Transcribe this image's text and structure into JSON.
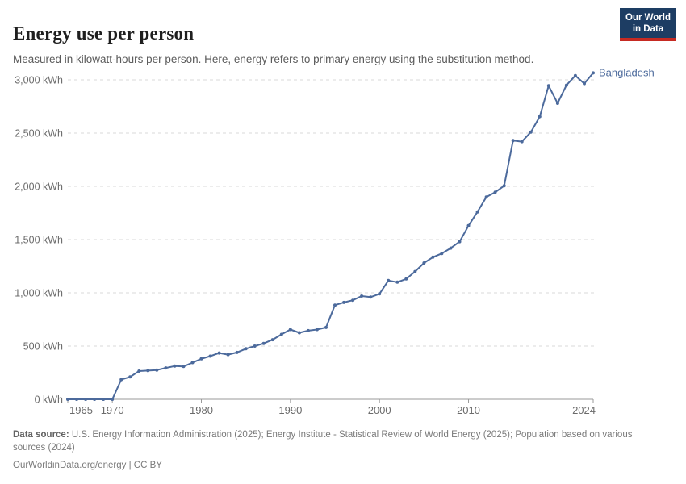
{
  "header": {
    "title": "Energy use per person",
    "subtitle": "Measured in kilowatt-hours per person. Here, energy refers to primary energy using the substitution method."
  },
  "logo": {
    "line1": "Our World",
    "line2": "in Data",
    "bg_color": "#1d3d63",
    "bar_color": "#c62a22"
  },
  "chart_data": {
    "type": "line",
    "title": "Energy use per person",
    "entity_label": "Bangladesh",
    "line_color": "#4c6a9c",
    "grid_color": "#dadada",
    "axis_color": "#9a9a9a",
    "tick_label_color": "#6b6b6b",
    "x": [
      1965,
      1966,
      1967,
      1968,
      1969,
      1970,
      1971,
      1972,
      1973,
      1974,
      1975,
      1976,
      1977,
      1978,
      1979,
      1980,
      1981,
      1982,
      1983,
      1984,
      1985,
      1986,
      1987,
      1988,
      1989,
      1990,
      1991,
      1992,
      1993,
      1994,
      1995,
      1996,
      1997,
      1998,
      1999,
      2000,
      2001,
      2002,
      2003,
      2004,
      2005,
      2006,
      2007,
      2008,
      2009,
      2010,
      2011,
      2012,
      2013,
      2014,
      2015,
      2016,
      2017,
      2018,
      2019,
      2020,
      2021,
      2022,
      2023,
      2024
    ],
    "series": [
      {
        "name": "Bangladesh",
        "values": [
          0,
          0,
          0,
          0,
          0,
          0,
          185,
          210,
          265,
          270,
          275,
          295,
          312,
          308,
          345,
          380,
          405,
          435,
          420,
          440,
          475,
          500,
          525,
          560,
          610,
          655,
          625,
          645,
          655,
          675,
          885,
          910,
          930,
          970,
          960,
          990,
          1115,
          1100,
          1130,
          1200,
          1280,
          1335,
          1370,
          1420,
          1480,
          1630,
          1760,
          1900,
          1945,
          2005,
          2430,
          2420,
          2510,
          2655,
          2945,
          2780,
          2950,
          3040,
          2965,
          3065
        ]
      }
    ],
    "x_ticks": [
      {
        "value": 1965,
        "label": "1965"
      },
      {
        "value": 1970,
        "label": "1970"
      },
      {
        "value": 1980,
        "label": "1980"
      },
      {
        "value": 1990,
        "label": "1990"
      },
      {
        "value": 2000,
        "label": "2000"
      },
      {
        "value": 2010,
        "label": "2010"
      },
      {
        "value": 2024,
        "label": "2024"
      }
    ],
    "y_ticks": [
      {
        "value": 0,
        "label": "0 kWh"
      },
      {
        "value": 500,
        "label": "500 kWh"
      },
      {
        "value": 1000,
        "label": "1,000 kWh"
      },
      {
        "value": 1500,
        "label": "1,500 kWh"
      },
      {
        "value": 2000,
        "label": "2,000 kWh"
      },
      {
        "value": 2500,
        "label": "2,500 kWh"
      },
      {
        "value": 3000,
        "label": "3,000 kWh"
      }
    ],
    "xlim": [
      1965,
      2024
    ],
    "ylim": [
      0,
      3100
    ],
    "xlabel": "",
    "ylabel": "",
    "grid": "dashed horizontal",
    "legend": "entity label at line end"
  },
  "footer": {
    "datasource_label": "Data source:",
    "datasource_text": " U.S. Energy Information Administration (2025); Energy Institute - Statistical Review of World Energy (2025); Population based on various sources (2024)",
    "license_line": "OurWorldinData.org/energy | CC BY"
  }
}
